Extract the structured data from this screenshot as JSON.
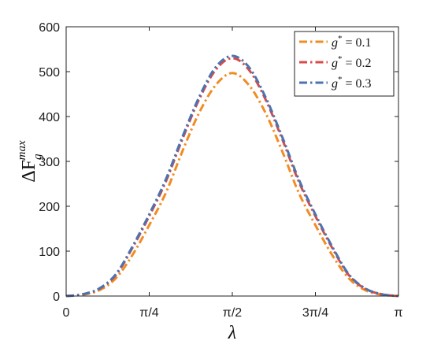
{
  "chart_data": {
    "type": "line",
    "xlabel": "λ",
    "ylabel": "ΔF_g^max",
    "xlim": [
      0,
      3.14159
    ],
    "ylim": [
      0,
      600
    ],
    "x_ticks": [
      {
        "value": 0,
        "label": "0"
      },
      {
        "value": 0.785398,
        "label": "π/4"
      },
      {
        "value": 1.570796,
        "label": "π/2"
      },
      {
        "value": 2.356194,
        "label": "3π/4"
      },
      {
        "value": 3.141593,
        "label": "π"
      }
    ],
    "y_ticks": [
      {
        "value": 0,
        "label": "0"
      },
      {
        "value": 100,
        "label": "100"
      },
      {
        "value": 200,
        "label": "200"
      },
      {
        "value": 300,
        "label": "300"
      },
      {
        "value": 400,
        "label": "400"
      },
      {
        "value": 500,
        "label": "500"
      },
      {
        "value": 600,
        "label": "600"
      }
    ],
    "grid": false,
    "legend_position": "top-right",
    "x": [
      0.0,
      0.1571,
      0.3142,
      0.4712,
      0.6283,
      0.7854,
      0.9425,
      1.0996,
      1.2566,
      1.4137,
      1.5708,
      1.7279,
      1.885,
      2.042,
      2.1991,
      2.3562,
      2.5133,
      2.6704,
      2.8274,
      2.9845,
      3.1416
    ],
    "series": [
      {
        "name": "g* = 0.1",
        "color": "#f08c24",
        "dash": "dashdot",
        "values": [
          0,
          3,
          13,
          40,
          92,
          158,
          230,
          323,
          408,
          470,
          497,
          470,
          408,
          323,
          230,
          158,
          92,
          40,
          13,
          3,
          0
        ]
      },
      {
        "name": "g* = 0.2",
        "color": "#d94a4a",
        "dash": "dashdot",
        "values": [
          0,
          4,
          16,
          47,
          108,
          178,
          255,
          350,
          438,
          504,
          530,
          504,
          438,
          350,
          255,
          178,
          108,
          47,
          16,
          4,
          0
        ]
      },
      {
        "name": "g* = 0.3",
        "color": "#4a74b0",
        "dash": "dashdot",
        "values": [
          0,
          4,
          17,
          49,
          111,
          182,
          260,
          355,
          443,
          510,
          535,
          510,
          443,
          355,
          260,
          182,
          111,
          49,
          17,
          4,
          0
        ]
      }
    ]
  },
  "legend": {
    "items": [
      {
        "prefix": "g",
        "sup": "*",
        "suffix": " = 0.1",
        "color": "#f08c24"
      },
      {
        "prefix": "g",
        "sup": "*",
        "suffix": " = 0.2",
        "color": "#d94a4a"
      },
      {
        "prefix": "g",
        "sup": "*",
        "suffix": " = 0.3",
        "color": "#4a74b0"
      }
    ]
  },
  "axis": {
    "xlabel": "λ",
    "ylabel_main": "ΔF",
    "ylabel_sub": "g",
    "ylabel_sup": "max"
  }
}
